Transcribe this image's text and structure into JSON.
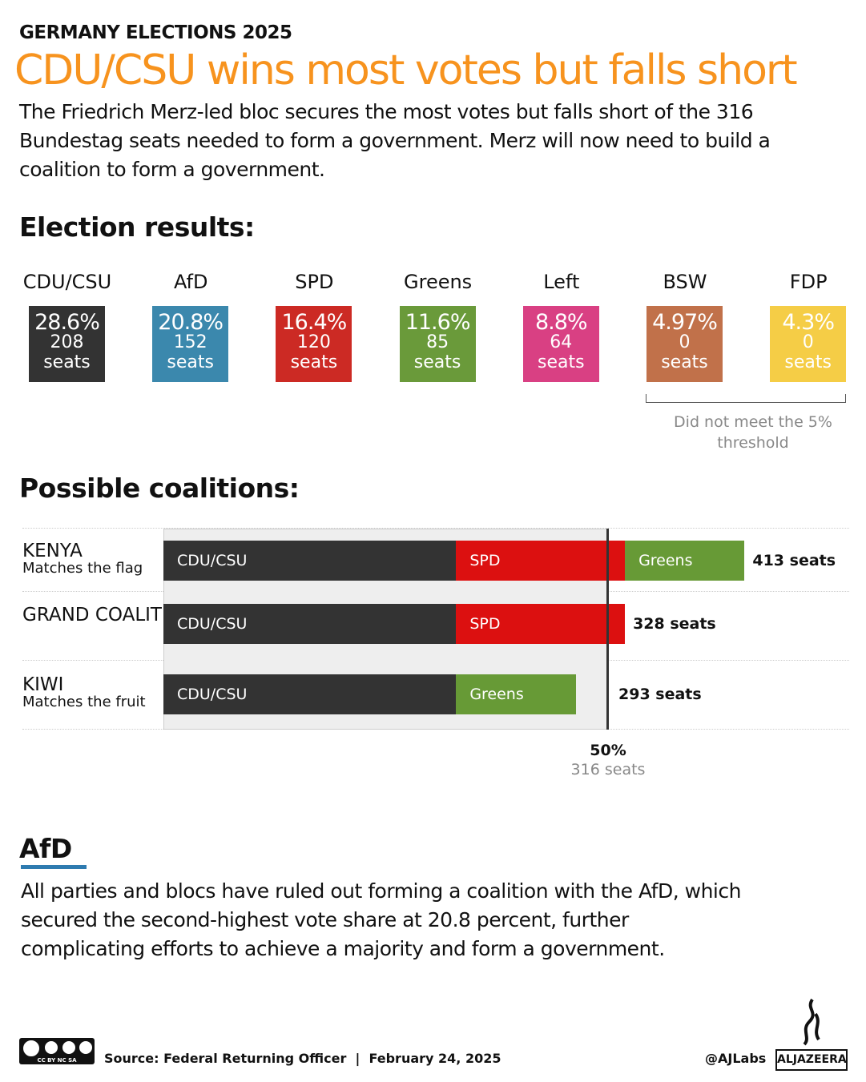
{
  "kicker": "GERMANY ELECTIONS 2025",
  "title": "CDU/CSU wins most votes but falls short",
  "intro": "The Friedrich Merz-led bloc secures the most votes but falls short of the 316 Bundestag seats needed to form a government. Merz will now need to build a coalition to form a government.",
  "results_heading": "Election results:",
  "parties": [
    {
      "name": "CDU/CSU",
      "pct": "28.6%",
      "seats": "208",
      "unit": "seats",
      "color": "#333333"
    },
    {
      "name": "AfD",
      "pct": "20.8%",
      "seats": "152",
      "unit": "seats",
      "color": "#3b88ad"
    },
    {
      "name": "SPD",
      "pct": "16.4%",
      "seats": "120",
      "unit": "seats",
      "color": "#cc2a24"
    },
    {
      "name": "Greens",
      "pct": "11.6%",
      "seats": "85",
      "unit": "seats",
      "color": "#6a9a3a"
    },
    {
      "name": "Left",
      "pct": "8.8%",
      "seats": "64",
      "unit": "seats",
      "color": "#d94083"
    },
    {
      "name": "BSW",
      "pct": "4.97%",
      "seats": "0",
      "unit": "seats",
      "color": "#c1714a"
    },
    {
      "name": "FDP",
      "pct": "4.3%",
      "seats": "0",
      "unit": "seats",
      "color": "#f5cd46"
    }
  ],
  "threshold_note": "Did not meet the 5% threshold",
  "coalitions_heading": "Possible coalitions:",
  "chart_data": {
    "type": "bar",
    "stacked": true,
    "orientation": "horizontal",
    "categories": [
      "KENYA",
      "GRAND COALITION",
      "KIWI"
    ],
    "subtitles": [
      "Matches the flag",
      "",
      "Matches the fruit"
    ],
    "rows": [
      {
        "name": "KENYA",
        "segments": [
          {
            "party": "CDU/CSU",
            "seats": 208,
            "color": "#333333"
          },
          {
            "party": "SPD",
            "seats": 120,
            "color": "#dc1010"
          },
          {
            "party": "Greens",
            "seats": 85,
            "color": "#679a36"
          }
        ],
        "total_label": "413 seats"
      },
      {
        "name": "GRAND COALITION",
        "segments": [
          {
            "party": "CDU/CSU",
            "seats": 208,
            "color": "#333333"
          },
          {
            "party": "SPD",
            "seats": 120,
            "color": "#dc1010"
          }
        ],
        "total_label": "328 seats"
      },
      {
        "name": "KIWI",
        "segments": [
          {
            "party": "CDU/CSU",
            "seats": 208,
            "color": "#333333"
          },
          {
            "party": "Greens",
            "seats": 85,
            "color": "#679a36"
          }
        ],
        "total_label": "293 seats"
      }
    ],
    "majority_line": {
      "label": "50%",
      "sublabel": "316 seats",
      "seats": 316
    }
  },
  "afd": {
    "heading": "AfD",
    "text": "All parties and blocs have ruled out forming a coalition with the AfD, which secured the second-highest vote share at 20.8 percent, further complicating efforts to achieve a majority and form a government."
  },
  "footer": {
    "source": "Source: Federal Returning Officer  |  February 24, 2025",
    "handle": "@AJLabs",
    "logo": "ALJAZEERA",
    "license": "CC BY NC SA"
  }
}
